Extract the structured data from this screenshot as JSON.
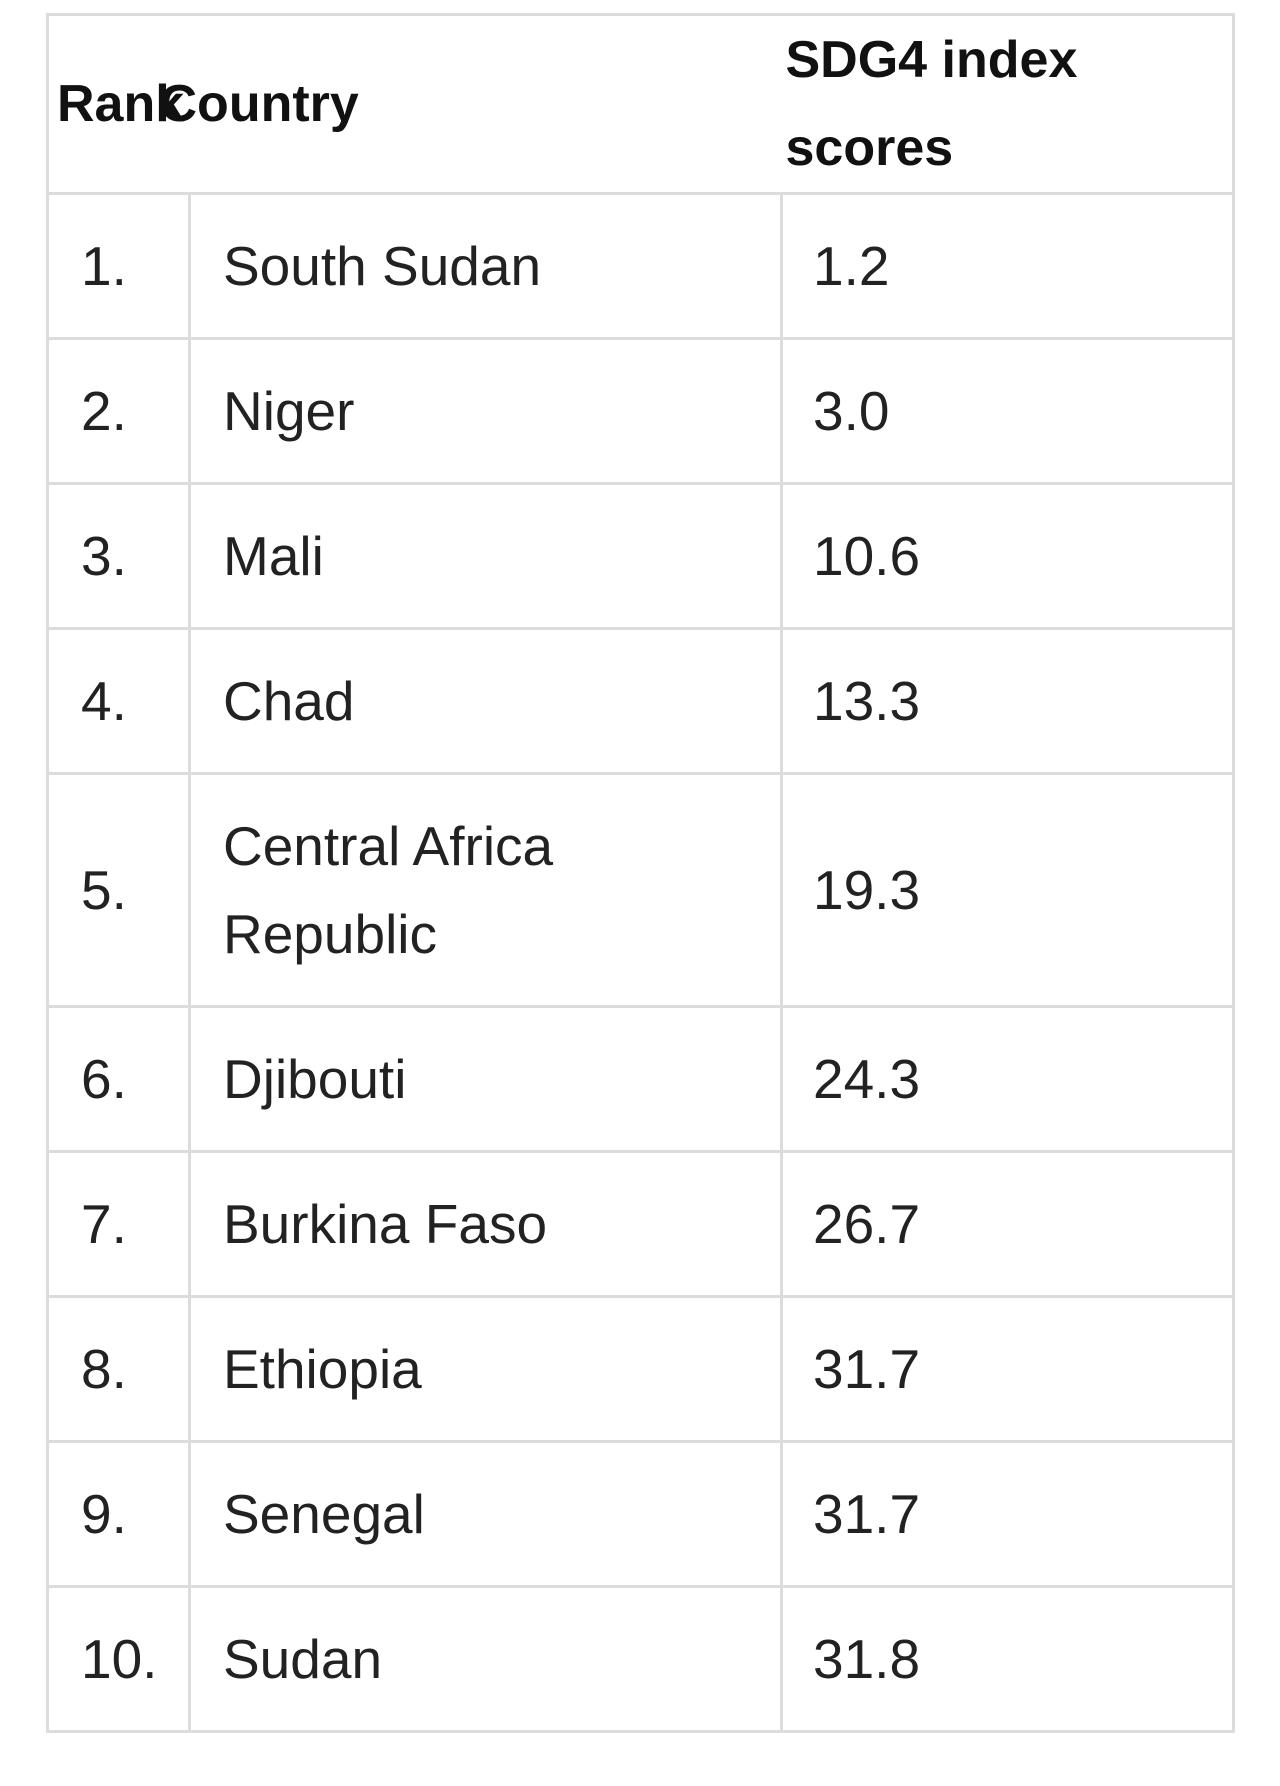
{
  "table": {
    "headers": {
      "rank": "Rank",
      "country": "Country",
      "score": "SDG4 index scores"
    },
    "rows": [
      {
        "rank": "1.",
        "country": "South Sudan",
        "score": "1.2"
      },
      {
        "rank": "2.",
        "country": "Niger",
        "score": "3.0"
      },
      {
        "rank": "3.",
        "country": "Mali",
        "score": "10.6"
      },
      {
        "rank": "4.",
        "country": "Chad",
        "score": "13.3"
      },
      {
        "rank": "5.",
        "country": "Central Africa Republic",
        "score": "19.3"
      },
      {
        "rank": "6.",
        "country": "Djibouti",
        "score": "24.3"
      },
      {
        "rank": "7.",
        "country": "Burkina Faso",
        "score": "26.7"
      },
      {
        "rank": "8.",
        "country": "Ethiopia",
        "score": "31.7"
      },
      {
        "rank": "9.",
        "country": "Senegal",
        "score": "31.7"
      },
      {
        "rank": "10.",
        "country": "Sudan",
        "score": "31.8"
      }
    ]
  }
}
